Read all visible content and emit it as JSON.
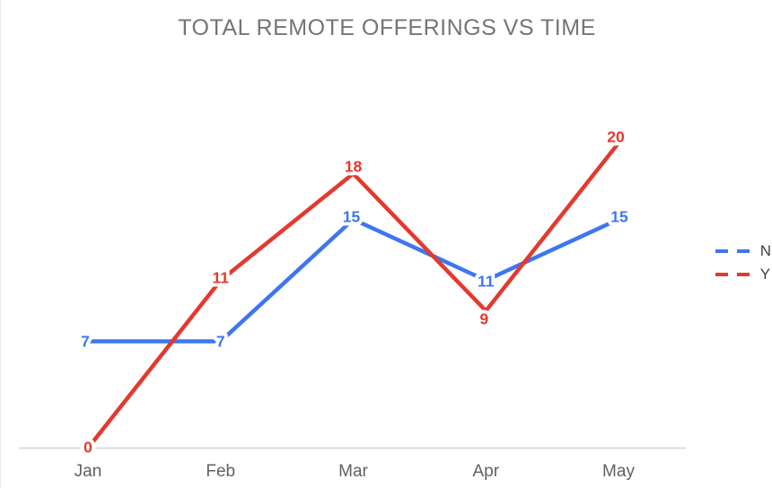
{
  "chart_data": {
    "type": "line",
    "title": "TOTAL REMOTE OFFERINGS VS TIME",
    "categories": [
      "Jan",
      "Feb",
      "Mar",
      "Apr",
      "May"
    ],
    "series": [
      {
        "name": "N",
        "color": "#3d76f0",
        "values": [
          7,
          7,
          15,
          11,
          15
        ]
      },
      {
        "name": "Y",
        "color": "#e4392e",
        "values": [
          0,
          11,
          18,
          9,
          20
        ]
      }
    ],
    "ylim": [
      0,
      20
    ],
    "xlabel": "",
    "ylabel": "",
    "legend_position": "right",
    "gridlines": false,
    "data_labels": true,
    "axis_line_color": "#dadce0",
    "axis_label_color": "#616161",
    "title_color": "#757575",
    "legend_text_color": "#3c4043"
  }
}
